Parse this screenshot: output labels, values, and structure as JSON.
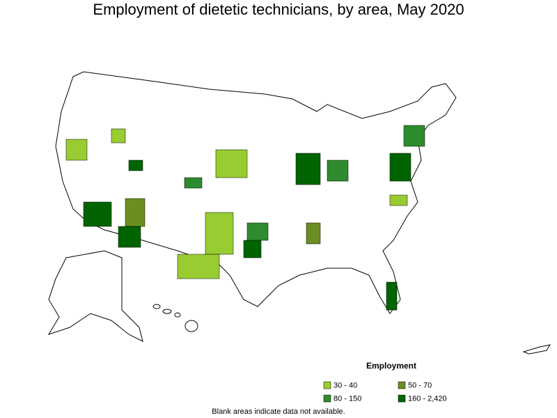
{
  "title": "Employment of dietetic technicians, by area, May 2020",
  "legend": {
    "title": "Employment",
    "items": [
      {
        "label": "30 - 40",
        "color": "#99cc33"
      },
      {
        "label": "50 - 70",
        "color": "#6b8e23"
      },
      {
        "label": "80 - 150",
        "color": "#2e8b2e"
      },
      {
        "label": "160 - 2,420",
        "color": "#006400"
      }
    ]
  },
  "footnote": "Blank areas indicate data not available."
}
